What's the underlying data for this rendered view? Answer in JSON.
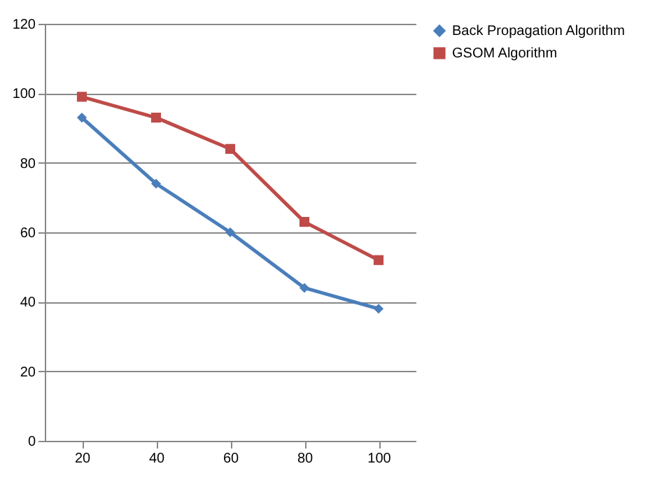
{
  "chart_data": {
    "type": "line",
    "categories": [
      "20",
      "40",
      "60",
      "80",
      "100"
    ],
    "series": [
      {
        "name": "Back Propagation Algorithm",
        "color": "#4a7ebb",
        "marker": "diamond",
        "values": [
          93,
          74,
          60,
          44,
          38
        ]
      },
      {
        "name": "GSOM Algorithm",
        "color": "#be4b48",
        "marker": "square",
        "values": [
          99,
          93,
          84,
          63,
          52
        ]
      }
    ],
    "ylim": [
      0,
      120
    ],
    "yticks": [
      0,
      20,
      40,
      60,
      80,
      100,
      120
    ],
    "grid": "y",
    "legend": "right",
    "line_style": "solid"
  }
}
